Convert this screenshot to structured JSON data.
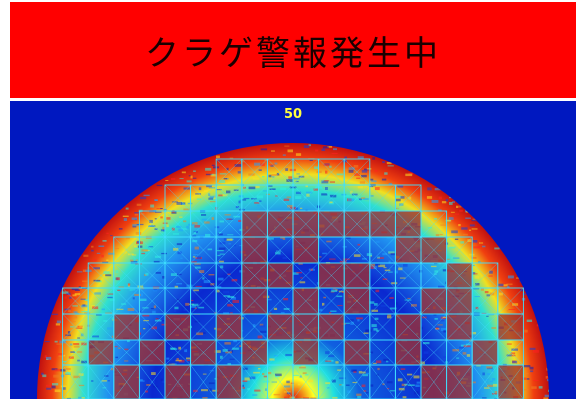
{
  "alert": {
    "text": "クラゲ警報発生中",
    "background_color": "#ff0000"
  },
  "sonar": {
    "range_label": "50",
    "background_color": "#0018c0",
    "grid_color": "#40e0ff",
    "alert_cell_color": "#a03030"
  }
}
